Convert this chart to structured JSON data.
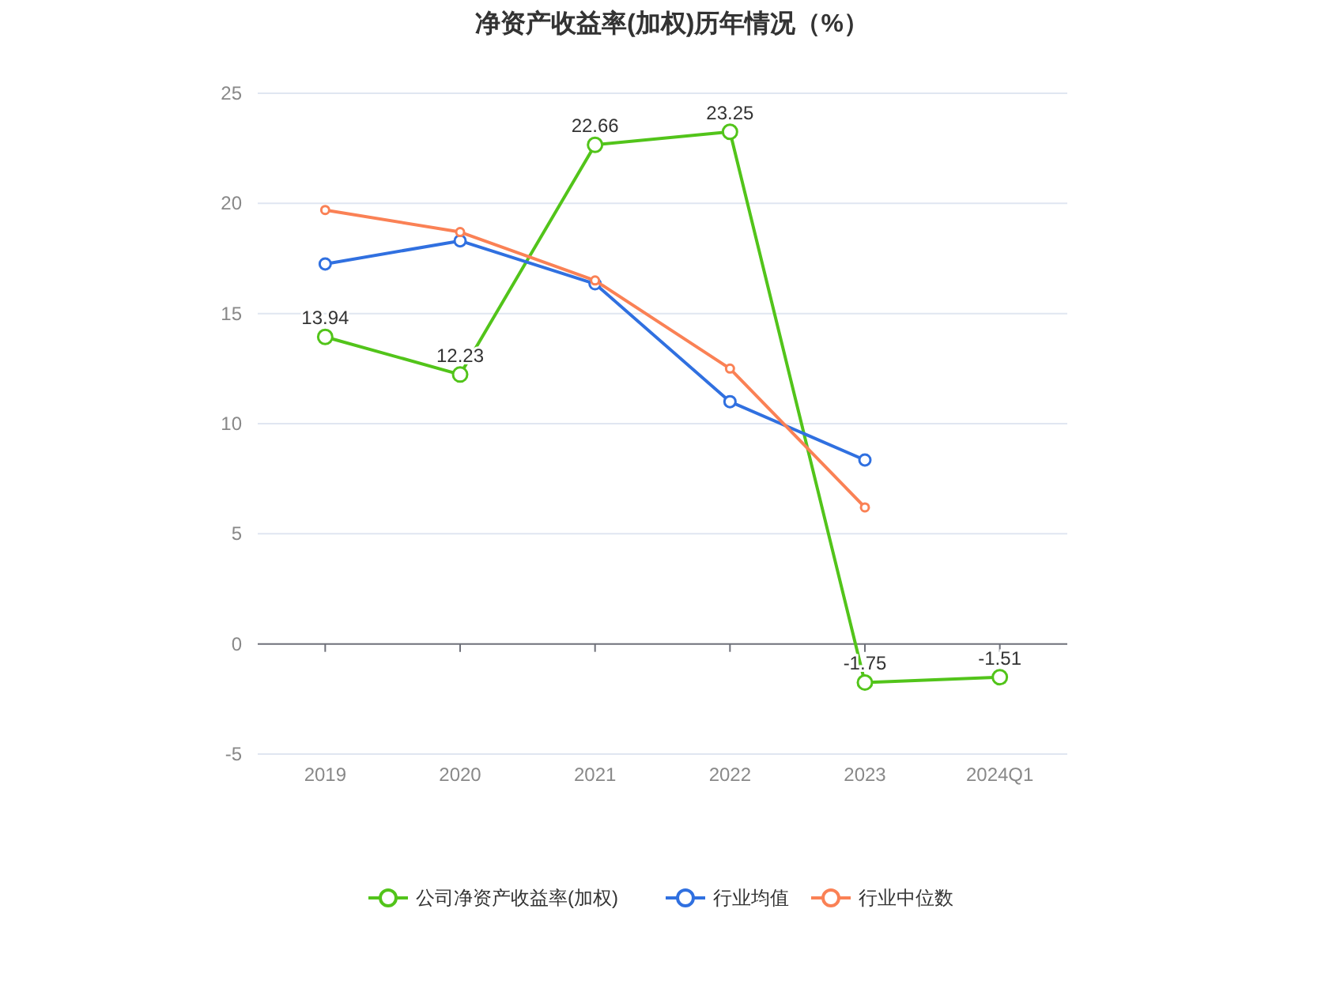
{
  "chart_data": {
    "type": "line",
    "title": "净资产收益率(加权)历年情况（%）",
    "categories": [
      "2019",
      "2020",
      "2021",
      "2022",
      "2023",
      "2024Q1"
    ],
    "series": [
      {
        "name": "公司净资产收益率(加权)",
        "color": "#52c41a",
        "values": [
          13.94,
          12.23,
          22.66,
          23.25,
          -1.75,
          -1.51
        ],
        "value_labels": [
          "13.94",
          "12.23",
          "22.66",
          "23.25",
          "-1.75",
          "-1.51"
        ]
      },
      {
        "name": "行业均值",
        "color": "#3070e0",
        "values": [
          17.25,
          18.3,
          16.35,
          11.0,
          8.35,
          null
        ]
      },
      {
        "name": "行业中位数",
        "color": "#fa8155",
        "values": [
          19.7,
          18.7,
          16.5,
          12.5,
          6.2,
          null
        ]
      }
    ],
    "ylim": [
      -5,
      25
    ],
    "yticks": [
      -5,
      0,
      5,
      10,
      15,
      20,
      25
    ],
    "grid": "y",
    "legend": "bottom",
    "marker": "circle",
    "line_style": "solid"
  }
}
